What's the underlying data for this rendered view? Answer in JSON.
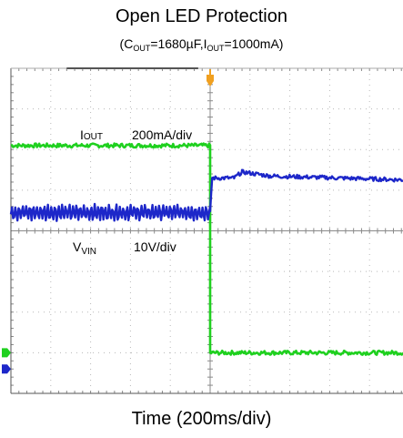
{
  "chart_data": {
    "type": "line",
    "title": "Open LED Protection",
    "subtitle": {
      "prefix1": "(C",
      "sub1": "OUT",
      "mid1": "=1680µF,I",
      "sub2": "OUT",
      "suffix": "=1000mA)"
    },
    "xlabel": "Time (200ms/div)",
    "grid": true,
    "x_divisions": 10,
    "y_divisions": 8,
    "x_range_div": [
      0,
      10
    ],
    "y_range_div": [
      0,
      8
    ],
    "trigger_div": 5,
    "annotations": {
      "iout_main": "I",
      "iout_sub": "OUT",
      "iout_scale": "200mA/div",
      "vvin_main": "V",
      "vvin_sub": "VIN",
      "vvin_scale": "10V/div"
    },
    "series": [
      {
        "color": "#1fd01f",
        "x_div": [
          0,
          5,
          5,
          10
        ],
        "y_div": [
          6.1,
          6.1,
          1.0,
          1.0
        ],
        "noise_div": 0.05
      },
      {
        "color": "#1d27c9",
        "x_div": [
          0,
          5,
          5.05,
          5.6,
          5.8,
          6.5,
          10
        ],
        "y_div": [
          4.45,
          4.45,
          5.3,
          5.3,
          5.45,
          5.35,
          5.25
        ],
        "noise_div": 0.05,
        "ripple_div": 0.17
      }
    ],
    "colors": {
      "green": "#1fd01f",
      "blue": "#1d27c9",
      "trigger": "#f0a020",
      "grid": "#b8b8b8"
    }
  }
}
